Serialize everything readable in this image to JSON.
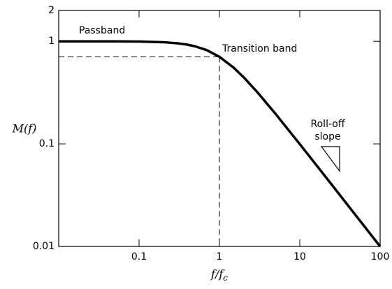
{
  "chart_data": {
    "type": "line",
    "ylabel": "M(f)",
    "xlabel": [
      "f/f",
      "c"
    ],
    "x": [
      0.01,
      0.05,
      0.1,
      0.2,
      0.3,
      0.4,
      0.5,
      0.7,
      1,
      1.5,
      2,
      3,
      5,
      7,
      10,
      20,
      50,
      100
    ],
    "values": [
      1,
      0.999,
      0.995,
      0.981,
      0.958,
      0.928,
      0.894,
      0.819,
      0.707,
      0.555,
      0.447,
      0.316,
      0.196,
      0.141,
      0.0995,
      0.05,
      0.02,
      0.01
    ],
    "color": "#000000",
    "xlim": [
      0.01,
      100
    ],
    "xticks": [
      0.1,
      1,
      10,
      100
    ],
    "ylim": [
      0.01,
      2
    ],
    "yticks": [
      0.01,
      0.1,
      1,
      2
    ],
    "log_x": true,
    "log_y": true,
    "cutoff": {
      "x": 1,
      "y": 0.707
    },
    "annotations": [
      "Passband",
      "Transition band",
      "Roll-off",
      "slope"
    ]
  }
}
